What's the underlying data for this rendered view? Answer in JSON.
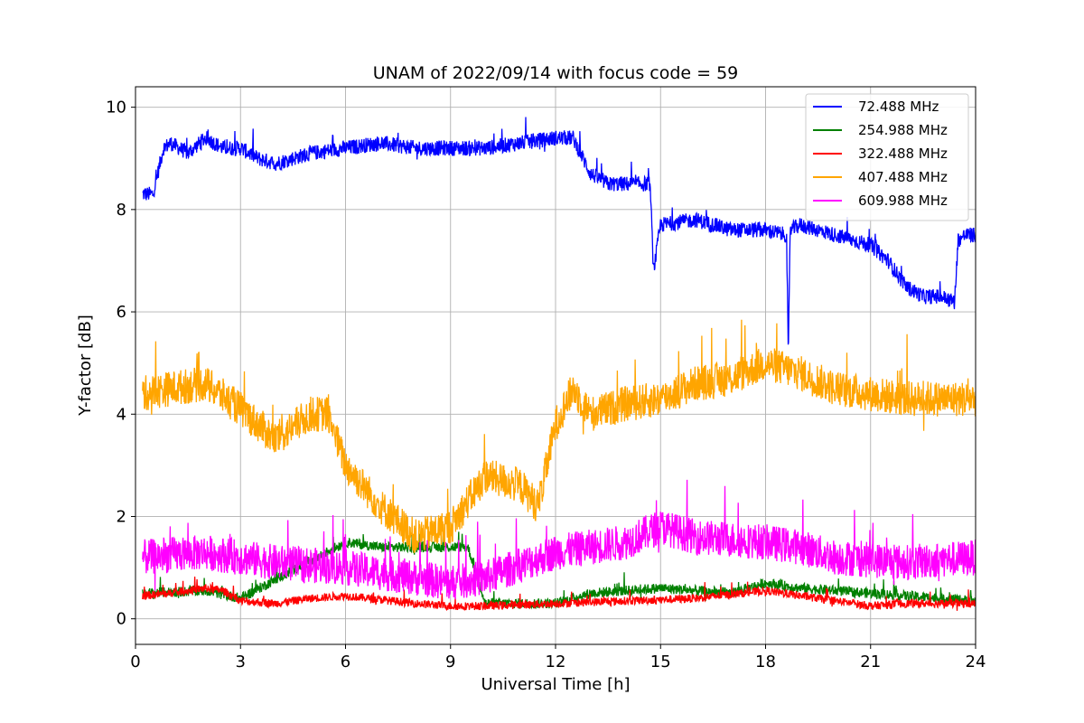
{
  "chart_data": {
    "type": "line",
    "title": "UNAM of 2022/09/14 with focus code = 59",
    "xlabel": "Universal Time [h]",
    "ylabel": "Y-factor [dB]",
    "xlim": [
      0,
      24
    ],
    "ylim": [
      -0.5,
      10.4
    ],
    "xticks": [
      0,
      3,
      6,
      9,
      12,
      15,
      18,
      21,
      24
    ],
    "yticks": [
      0,
      2,
      4,
      6,
      8,
      10
    ],
    "grid": true,
    "legend_position": "top-right",
    "x_range_of_data": [
      0.2,
      24
    ],
    "series": [
      {
        "name": "72.488 MHz",
        "color": "#0000ff",
        "noise": 0.15,
        "x": [
          0.2,
          0.5,
          0.8,
          1.0,
          1.5,
          2.0,
          2.5,
          3.0,
          3.5,
          4.0,
          5.0,
          6.0,
          7.0,
          8.0,
          9.0,
          10.0,
          11.0,
          12.0,
          12.5,
          13.0,
          13.5,
          14.0,
          14.5,
          14.7,
          14.8,
          15.0,
          16.0,
          17.0,
          18.0,
          18.6,
          18.65,
          18.7,
          19.0,
          20.0,
          21.0,
          21.5,
          22.0,
          22.5,
          23.0,
          23.4,
          23.5,
          23.7,
          24.0
        ],
        "values": [
          8.3,
          8.3,
          9.2,
          9.3,
          9.1,
          9.4,
          9.2,
          9.2,
          9.0,
          8.9,
          9.1,
          9.2,
          9.3,
          9.2,
          9.2,
          9.2,
          9.3,
          9.4,
          9.4,
          8.7,
          8.5,
          8.5,
          8.5,
          8.5,
          6.8,
          7.7,
          7.8,
          7.6,
          7.6,
          7.5,
          5.0,
          7.6,
          7.7,
          7.5,
          7.3,
          7.0,
          6.5,
          6.3,
          6.3,
          6.2,
          7.4,
          7.5,
          7.5
        ]
      },
      {
        "name": "254.988 MHz",
        "color": "#008000",
        "noise": 0.1,
        "x": [
          0.2,
          2.0,
          3.0,
          6.0,
          7.0,
          9.0,
          9.5,
          10.0,
          12.0,
          13.0,
          15.0,
          17.0,
          18.0,
          19.0,
          21.0,
          23.0,
          24.0
        ],
        "values": [
          0.5,
          0.55,
          0.4,
          1.5,
          1.4,
          1.4,
          1.4,
          0.3,
          0.3,
          0.5,
          0.6,
          0.5,
          0.7,
          0.6,
          0.5,
          0.4,
          0.35
        ]
      },
      {
        "name": "322.488 MHz",
        "color": "#ff0000",
        "noise": 0.08,
        "x": [
          0.2,
          1.0,
          2.0,
          2.5,
          3.0,
          4.0,
          5.0,
          6.0,
          8.0,
          9.0,
          10.0,
          12.0,
          14.0,
          16.0,
          18.0,
          19.0,
          20.0,
          21.0,
          22.0,
          23.0,
          24.0
        ],
        "values": [
          0.45,
          0.5,
          0.6,
          0.55,
          0.35,
          0.3,
          0.4,
          0.45,
          0.3,
          0.25,
          0.25,
          0.3,
          0.35,
          0.4,
          0.55,
          0.45,
          0.35,
          0.25,
          0.3,
          0.3,
          0.3
        ]
      },
      {
        "name": "407.488 MHz",
        "color": "#ffa500",
        "noise": 0.35,
        "x": [
          0.2,
          1.0,
          2.0,
          3.0,
          4.0,
          5.0,
          5.5,
          6.0,
          7.0,
          8.0,
          9.0,
          10.0,
          11.0,
          11.5,
          12.0,
          12.5,
          13.0,
          14.0,
          15.0,
          16.0,
          17.0,
          18.0,
          19.0,
          20.0,
          21.0,
          22.0,
          23.0,
          24.0
        ],
        "values": [
          4.4,
          4.5,
          4.6,
          4.1,
          3.5,
          4.0,
          4.0,
          3.0,
          2.2,
          1.6,
          1.8,
          2.8,
          2.6,
          2.2,
          3.8,
          4.5,
          4.0,
          4.2,
          4.3,
          4.6,
          4.7,
          5.0,
          4.8,
          4.5,
          4.4,
          4.3,
          4.3,
          4.3
        ]
      },
      {
        "name": "609.988 MHz",
        "color": "#ff00ff",
        "noise": 0.35,
        "x": [
          0.2,
          2.0,
          4.0,
          6.0,
          8.0,
          9.0,
          10.0,
          12.0,
          14.0,
          15.0,
          16.0,
          18.0,
          19.0,
          20.0,
          22.0,
          24.0
        ],
        "values": [
          1.2,
          1.3,
          1.1,
          1.0,
          0.8,
          0.7,
          0.8,
          1.3,
          1.5,
          1.8,
          1.6,
          1.5,
          1.4,
          1.2,
          1.1,
          1.2
        ]
      }
    ]
  }
}
